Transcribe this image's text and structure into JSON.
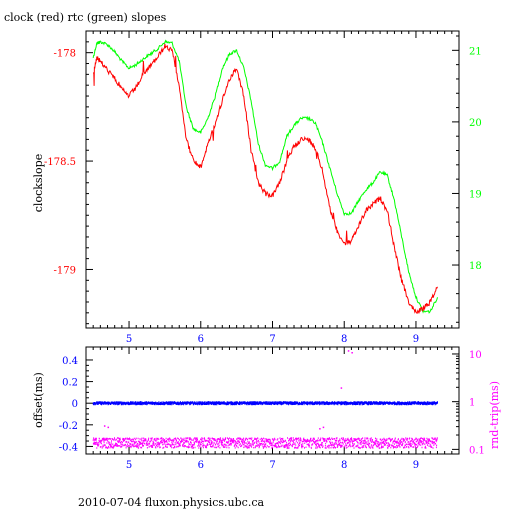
{
  "page": {
    "title": "clock (red) rtc (green) slopes",
    "footer": "2010-07-04 fluxon.physics.ubc.ca"
  },
  "colors": {
    "clock": "#ff0000",
    "rtc": "#00ff00",
    "offset": "#0000ff",
    "rtt": "#ff00ff",
    "axis": "#000000"
  },
  "chart_data": [
    {
      "type": "line",
      "title": "clock (red) rtc (green) slopes",
      "ylabel": "clockslope",
      "xlim": [
        4.4,
        9.6
      ],
      "ylim": [
        -179.27,
        -177.9
      ],
      "xticks": [
        "5",
        "6",
        "7",
        "8",
        "9"
      ],
      "yticks": [
        "-178",
        "-178.5",
        "-179"
      ],
      "y2lim": [
        17.12,
        21.27
      ],
      "y2ticks": [
        "21",
        "20",
        "19",
        "18"
      ],
      "series": [
        {
          "name": "clock",
          "axis": "left",
          "x": [
            4.5,
            4.55,
            4.6,
            4.7,
            4.8,
            4.9,
            5.0,
            5.1,
            5.2,
            5.3,
            5.4,
            5.5,
            5.6,
            5.7,
            5.8,
            5.9,
            6.0,
            6.1,
            6.2,
            6.3,
            6.4,
            6.5,
            6.6,
            6.7,
            6.8,
            6.9,
            7.0,
            7.1,
            7.2,
            7.3,
            7.4,
            7.5,
            7.6,
            7.7,
            7.8,
            7.9,
            8.0,
            8.1,
            8.2,
            8.3,
            8.4,
            8.5,
            8.6,
            8.7,
            8.8,
            8.9,
            9.0,
            9.1,
            9.2,
            9.3
          ],
          "values": [
            -178.1,
            -178.02,
            -178.04,
            -178.08,
            -178.12,
            -178.17,
            -178.2,
            -178.16,
            -178.1,
            -178.06,
            -178.02,
            -177.97,
            -177.99,
            -178.15,
            -178.4,
            -178.5,
            -178.53,
            -178.42,
            -178.33,
            -178.22,
            -178.12,
            -178.07,
            -178.2,
            -178.45,
            -178.6,
            -178.65,
            -178.66,
            -178.6,
            -178.5,
            -178.43,
            -178.4,
            -178.4,
            -178.44,
            -178.55,
            -178.72,
            -178.82,
            -178.88,
            -178.87,
            -178.8,
            -178.73,
            -178.7,
            -178.67,
            -178.73,
            -178.9,
            -179.05,
            -179.15,
            -179.2,
            -179.18,
            -179.15,
            -179.08
          ]
        },
        {
          "name": "rtc",
          "axis": "right",
          "x": [
            4.5,
            4.55,
            4.6,
            4.7,
            4.8,
            4.9,
            5.0,
            5.1,
            5.2,
            5.3,
            5.4,
            5.5,
            5.6,
            5.7,
            5.8,
            5.9,
            6.0,
            6.1,
            6.2,
            6.3,
            6.4,
            6.5,
            6.6,
            6.7,
            6.8,
            6.9,
            7.0,
            7.1,
            7.2,
            7.3,
            7.4,
            7.5,
            7.6,
            7.7,
            7.8,
            7.9,
            8.0,
            8.1,
            8.2,
            8.3,
            8.4,
            8.5,
            8.6,
            8.7,
            8.8,
            8.9,
            9.0,
            9.1,
            9.2,
            9.3
          ],
          "values": [
            20.9,
            21.1,
            21.12,
            21.08,
            20.98,
            20.85,
            20.75,
            20.8,
            20.88,
            20.95,
            21.02,
            21.12,
            21.1,
            20.85,
            20.2,
            19.9,
            19.85,
            20.05,
            20.35,
            20.75,
            20.95,
            21.0,
            20.75,
            20.3,
            19.7,
            19.4,
            19.35,
            19.45,
            19.8,
            19.95,
            20.05,
            20.05,
            19.98,
            19.7,
            19.35,
            19.0,
            18.72,
            18.72,
            18.9,
            19.05,
            19.15,
            19.3,
            19.25,
            18.9,
            18.4,
            17.9,
            17.55,
            17.35,
            17.35,
            17.55
          ]
        }
      ]
    },
    {
      "type": "scatter",
      "ylabel": "offset(ms)",
      "y2label": "rnd-trip(ms)",
      "xlim": [
        4.4,
        9.6
      ],
      "ylim": [
        -0.47,
        0.52
      ],
      "xticks": [
        "5",
        "6",
        "7",
        "8",
        "9"
      ],
      "yticks": [
        "0.4",
        "0.2",
        "0",
        "-0.2",
        "-0.4"
      ],
      "y2scale": "log",
      "y2lim": [
        0.08,
        14
      ],
      "y2ticks": [
        "10",
        "1",
        "0.1"
      ],
      "series": [
        {
          "name": "offset",
          "axis": "left",
          "x_range": [
            4.5,
            9.3
          ],
          "level": 0.0,
          "spread": 0.01
        },
        {
          "name": "rtt",
          "axis": "right",
          "x_range": [
            4.5,
            9.3
          ],
          "level": 0.14,
          "spread_low": 0.11,
          "spread_high": 0.18,
          "outliers": [
            [
              7.65,
              0.28
            ],
            [
              7.7,
              0.3
            ],
            [
              8.05,
              12
            ],
            [
              8.1,
              11
            ],
            [
              7.95,
              2.0
            ],
            [
              4.65,
              0.32
            ],
            [
              4.7,
              0.3
            ]
          ]
        }
      ]
    }
  ]
}
